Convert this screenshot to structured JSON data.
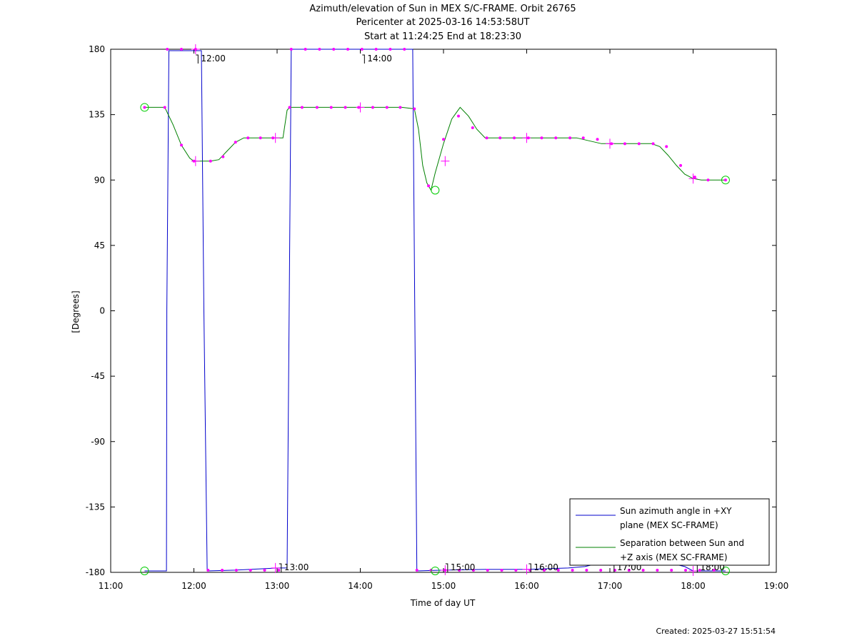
{
  "header": {
    "title_line1": "Azimuth/elevation of Sun in MEX S/C-FRAME.  Orbit 26765",
    "title_line2": "Pericenter at 2025-03-16 14:53:58UT",
    "title_line3": "Start at 11:24:25 End at 18:23:30"
  },
  "footer": {
    "created": "Created: 2025-03-27 15:51:54"
  },
  "chart_data": {
    "type": "line",
    "xlabel": "Time of day UT",
    "ylabel": "[Degrees]",
    "xlim": [
      11.0,
      19.0
    ],
    "ylim": [
      -180,
      180
    ],
    "xticks": [
      11,
      12,
      13,
      14,
      15,
      16,
      17,
      18,
      19
    ],
    "xtick_labels": [
      "11:00",
      "12:00",
      "13:00",
      "14:00",
      "15:00",
      "16:00",
      "17:00",
      "18:00",
      "19:00"
    ],
    "yticks": [
      180,
      135,
      90,
      45,
      0,
      -45,
      -90,
      -135,
      -180
    ],
    "ytick_labels": [
      "180",
      "135",
      "90",
      "45",
      "0",
      "-45",
      "-90",
      "-135",
      "-180"
    ],
    "legend_position": "bottom-right",
    "colors": {
      "azimuth": "#0000cc",
      "separation": "#008000",
      "marker": "#ff00ff",
      "circle": "#00cc00"
    },
    "series": [
      {
        "name": "Sun azimuth angle in +XY plane (MEX SC-FRAME)",
        "legend_line1": "Sun azimuth angle in +XY",
        "legend_line2": "plane (MEX SC-FRAME)",
        "color": "#0000cc",
        "x": [
          11.407,
          11.67,
          11.675,
          11.7,
          12.0,
          12.09,
          12.12,
          12.16,
          12.5,
          13.0,
          13.12,
          13.145,
          13.17,
          14.0,
          14.63,
          14.655,
          14.68,
          15.0,
          15.5,
          16.0,
          16.5,
          16.7,
          17.0,
          17.3,
          17.6,
          17.9,
          18.0,
          18.39
        ],
        "y": [
          -179,
          -179,
          0,
          179,
          179,
          179,
          0,
          -179,
          -178.5,
          -177,
          -177,
          0,
          180,
          180,
          180,
          0,
          -179,
          -178.5,
          -178,
          -178,
          -177,
          -176,
          -172,
          -172,
          -172,
          -176,
          -179,
          -179
        ]
      },
      {
        "name": "Separation between Sun and +Z axis (MEX SC-FRAME)",
        "legend_line1": "Separation between Sun and",
        "legend_line2": "+Z axis (MEX SC-FRAME)",
        "color": "#008000",
        "x": [
          11.407,
          11.5,
          11.65,
          11.75,
          11.85,
          11.95,
          12.0,
          12.1,
          12.2,
          12.3,
          12.4,
          12.5,
          12.6,
          12.7,
          12.8,
          12.9,
          13.0,
          13.07,
          13.12,
          13.15,
          13.3,
          13.5,
          14.0,
          14.5,
          14.65,
          14.7,
          14.75,
          14.8,
          14.85,
          14.9,
          15.0,
          15.1,
          15.2,
          15.3,
          15.4,
          15.5,
          16.0,
          16.5,
          16.6,
          16.75,
          16.9,
          17.0,
          17.5,
          17.6,
          17.7,
          17.8,
          17.9,
          18.0,
          18.1,
          18.39
        ],
        "y": [
          140,
          140,
          140,
          128,
          114,
          105,
          103,
          103,
          103,
          104,
          110,
          116,
          119,
          119,
          119,
          119,
          119,
          119,
          138,
          140,
          140,
          140,
          140,
          140,
          139,
          125,
          100,
          88,
          83,
          95,
          115,
          132,
          140,
          134,
          125,
          119,
          119,
          119,
          119,
          117,
          115,
          115,
          115,
          113,
          107,
          100,
          94,
          91,
          90,
          90
        ]
      }
    ],
    "markers": {
      "sep_dots_x": [
        11.407,
        11.65,
        11.85,
        12.0,
        12.2,
        12.35,
        12.5,
        12.65,
        12.8,
        12.95,
        13.15,
        13.3,
        13.48,
        13.65,
        13.82,
        13.98,
        14.15,
        14.32,
        14.48,
        14.65,
        14.82,
        15.0,
        15.18,
        15.35,
        15.52,
        15.68,
        15.85,
        16.02,
        16.18,
        16.35,
        16.52,
        16.68,
        16.85,
        17.02,
        17.18,
        17.35,
        17.52,
        17.68,
        17.85,
        18.02,
        18.18,
        18.39
      ],
      "sep_dots_y": [
        140,
        140,
        114,
        103,
        103,
        106,
        116,
        119,
        119,
        119,
        140,
        140,
        140,
        140,
        140,
        140,
        140,
        140,
        140,
        139,
        86,
        118,
        134,
        126,
        119,
        119,
        119,
        119,
        119,
        119,
        119,
        119,
        118,
        115,
        115,
        115,
        115,
        113,
        100,
        92,
        90,
        90
      ],
      "az_top_dots_x": [
        11.68,
        11.85,
        12.02,
        13.17,
        13.34,
        13.51,
        13.68,
        13.85,
        14.02,
        14.19,
        14.36,
        14.53
      ],
      "az_bottom_dots_x": [
        12.17,
        12.34,
        12.51,
        12.68,
        12.85,
        13.02,
        14.68,
        14.85,
        15.02,
        15.19,
        15.36,
        15.53,
        15.7,
        15.87,
        16.04,
        16.21,
        16.38,
        16.55,
        16.72,
        16.89,
        17.06,
        17.23,
        17.4,
        17.57,
        17.74,
        17.91,
        18.08,
        18.25
      ],
      "crosses": [
        [
          12.02,
          180
        ],
        [
          12.02,
          103
        ],
        [
          12.98,
          119
        ],
        [
          12.98,
          -177
        ],
        [
          14.0,
          140
        ],
        [
          15.02,
          103
        ],
        [
          15.02,
          -178.5
        ],
        [
          16.0,
          119
        ],
        [
          16.0,
          -178
        ],
        [
          17.0,
          115
        ],
        [
          17.0,
          -172
        ],
        [
          18.0,
          91
        ],
        [
          18.0,
          -179
        ]
      ],
      "circles": [
        [
          11.407,
          140
        ],
        [
          11.407,
          -179
        ],
        [
          14.9,
          83
        ],
        [
          14.9,
          -179
        ],
        [
          18.39,
          90
        ],
        [
          18.39,
          -179
        ]
      ],
      "hour_ticks": [
        {
          "x": 12.05,
          "level": "top",
          "label": "12:00"
        },
        {
          "x": 13.05,
          "level": "bottom",
          "label": "13:00"
        },
        {
          "x": 14.05,
          "level": "top",
          "label": "14:00"
        },
        {
          "x": 15.05,
          "level": "bottom",
          "label": "15:00"
        },
        {
          "x": 16.05,
          "level": "bottom",
          "label": "16:00"
        },
        {
          "x": 17.05,
          "level": "bottom",
          "label": "17:00"
        },
        {
          "x": 18.05,
          "level": "bottom",
          "label": "18:00"
        }
      ]
    }
  }
}
